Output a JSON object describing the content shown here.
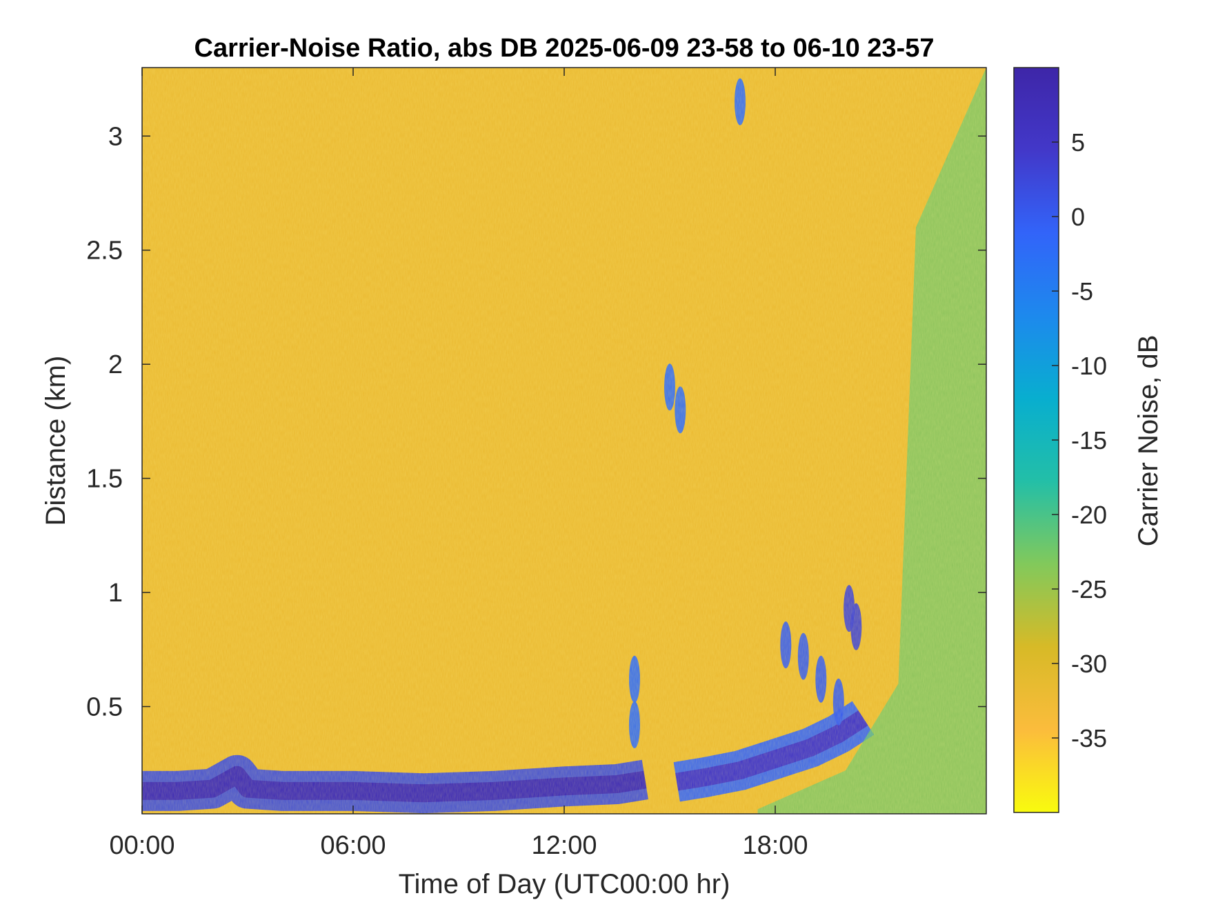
{
  "chart_data": {
    "type": "heatmap",
    "title": "Carrier-Noise Ratio, abs DB 2025-06-09 23-58 to 06-10 23-57",
    "xlabel": "Time of Day (UTC00:00 hr)",
    "ylabel": "Distance (km)",
    "colorbar_label": "Carrier Noise, dB",
    "xlim": [
      0,
      24
    ],
    "ylim": [
      0.03,
      3.3
    ],
    "clim": [
      -40,
      10
    ],
    "x_ticks": [
      {
        "value": 0,
        "label": "00:00"
      },
      {
        "value": 6,
        "label": "06:00"
      },
      {
        "value": 12,
        "label": "12:00"
      },
      {
        "value": 18,
        "label": "18:00"
      }
    ],
    "y_ticks": [
      {
        "value": 0.5,
        "label": "0.5"
      },
      {
        "value": 1,
        "label": "1"
      },
      {
        "value": 1.5,
        "label": "1.5"
      },
      {
        "value": 2,
        "label": "2"
      },
      {
        "value": 2.5,
        "label": "2.5"
      },
      {
        "value": 3,
        "label": "3"
      }
    ],
    "colorbar_ticks": [
      {
        "value": 5,
        "label": "5"
      },
      {
        "value": 0,
        "label": "0"
      },
      {
        "value": -5,
        "label": "-5"
      },
      {
        "value": -10,
        "label": "-10"
      },
      {
        "value": -15,
        "label": "-15"
      },
      {
        "value": -20,
        "label": "-20"
      },
      {
        "value": -25,
        "label": "-25"
      },
      {
        "value": -30,
        "label": "-30"
      },
      {
        "value": -35,
        "label": "-35"
      }
    ],
    "background_value": -32,
    "colormap": "parula",
    "colormap_stops": [
      "#f9fb0e",
      "#fbbc3c",
      "#d7ba27",
      "#82c95b",
      "#23bfa7",
      "#08aecf",
      "#1d89ed",
      "#3264f9",
      "#4238c9",
      "#3e26a8"
    ],
    "features": [
      {
        "name": "boundary layer aerosol band",
        "x": [
          0,
          1,
          2,
          2.7,
          3,
          4,
          6,
          8,
          10,
          12,
          13.5,
          14.3
        ],
        "y": [
          0.13,
          0.13,
          0.14,
          0.2,
          0.14,
          0.13,
          0.13,
          0.12,
          0.13,
          0.15,
          0.16,
          0.18
        ],
        "value": 8
      },
      {
        "name": "rising layer",
        "x": [
          15.2,
          16,
          17,
          18,
          19,
          19.8,
          20.5
        ],
        "y": [
          0.17,
          0.19,
          0.22,
          0.27,
          0.32,
          0.38,
          0.45
        ],
        "value": 5
      },
      {
        "name": "cloud plume upper",
        "x": [
          18.3,
          18.8,
          19.3,
          19.8
        ],
        "y": [
          0.77,
          0.72,
          0.62,
          0.52
        ],
        "value": 0
      },
      {
        "name": "cloud patch",
        "x": [
          20.1,
          20.3
        ],
        "y": [
          0.93,
          0.85
        ],
        "value": 3
      },
      {
        "name": "isolated echoes",
        "x": [
          14.0,
          14.0,
          15.0,
          15.3,
          17.0
        ],
        "y": [
          0.62,
          0.42,
          1.9,
          1.8,
          3.15
        ],
        "value": -2
      },
      {
        "name": "late-day mixed layer",
        "x": [
          17.5,
          20,
          21.5,
          22,
          24
        ],
        "y": [
          0.05,
          0.22,
          0.6,
          2.6,
          3.3
        ],
        "value": -22
      }
    ]
  }
}
